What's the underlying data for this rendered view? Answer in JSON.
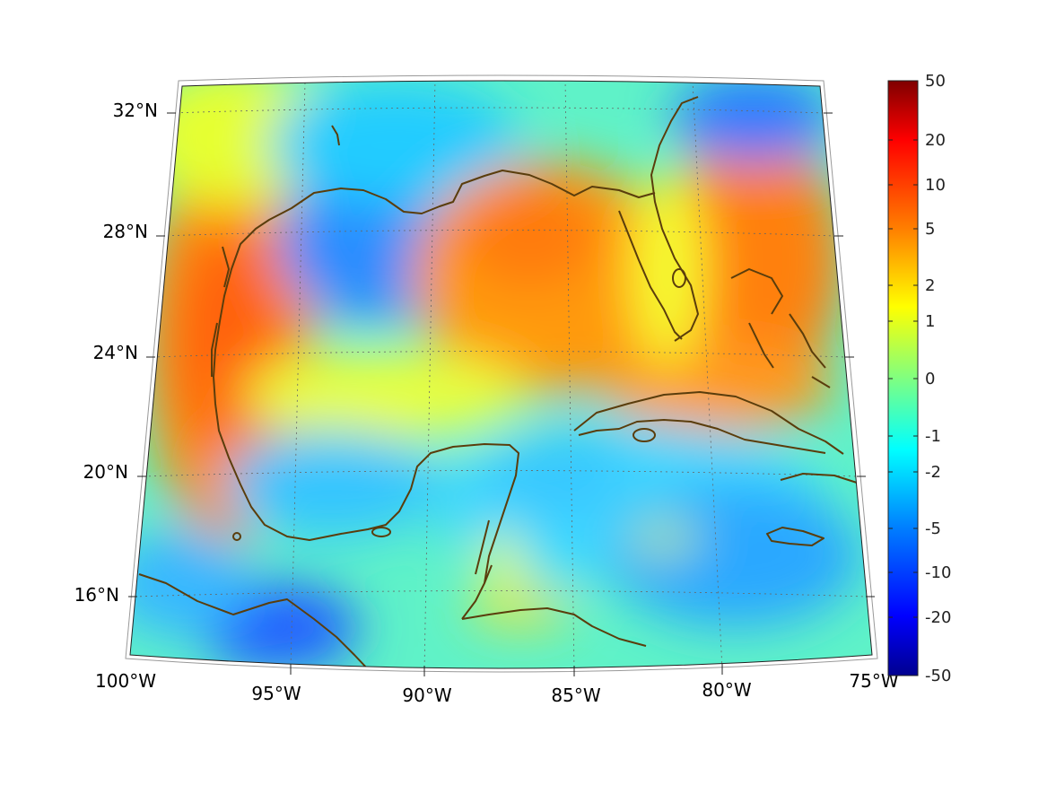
{
  "map": {
    "lat_labels": [
      "32°N",
      "28°N",
      "24°N",
      "20°N",
      "16°N"
    ],
    "lon_labels": [
      "100°W",
      "95°W",
      "90°W",
      "85°W",
      "80°W",
      "75°W"
    ],
    "extent": {
      "lon_min": -100,
      "lon_max": -75,
      "lat_min": 14,
      "lat_max": 33
    },
    "coastline_color": "#5a3d0c"
  },
  "colorbar": {
    "tick_labels": [
      "50",
      "20",
      "10",
      "5",
      "2",
      "1",
      "0",
      "-1",
      "-2",
      "-5",
      "-10",
      "-20",
      "-50"
    ],
    "colors": [
      "#7f0000",
      "#ff0000",
      "#ff8000",
      "#ffff00",
      "#80ff80",
      "#00ffff",
      "#0080ff",
      "#0000ff",
      "#00008f"
    ]
  }
}
